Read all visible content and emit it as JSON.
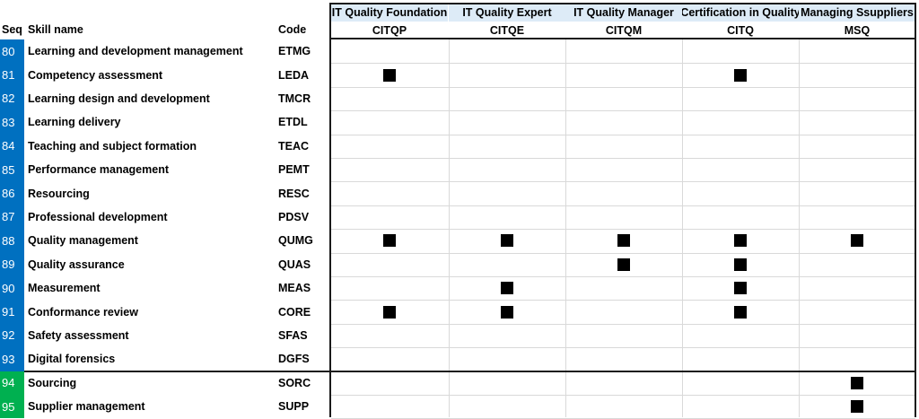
{
  "headers": {
    "seq": "Seq",
    "skill_name": "Skill name",
    "code": "Code"
  },
  "certifications": [
    {
      "name": "IT Quality Foundation",
      "code": "CITQP"
    },
    {
      "name": "IT Quality Expert",
      "code": "CITQE"
    },
    {
      "name": "IT Quality Manager",
      "code": "CITQM"
    },
    {
      "name": "Certification in Quality",
      "code": "CITQ"
    },
    {
      "name": "Managing Ssuppliers",
      "code": "MSQ"
    }
  ],
  "colors": {
    "seq_blue": "#0070c0",
    "seq_green": "#00b050",
    "header_band": "#ddebf7",
    "mark": "#000000"
  },
  "rows": [
    {
      "seq": "80",
      "name": "Learning and development management",
      "code": "ETMG",
      "group": "blue",
      "marks": [
        0,
        0,
        0,
        0,
        0
      ]
    },
    {
      "seq": "81",
      "name": "Competency assessment",
      "code": "LEDA",
      "group": "blue",
      "marks": [
        1,
        0,
        0,
        1,
        0
      ]
    },
    {
      "seq": "82",
      "name": "Learning design and development",
      "code": "TMCR",
      "group": "blue",
      "marks": [
        0,
        0,
        0,
        0,
        0
      ]
    },
    {
      "seq": "83",
      "name": "Learning delivery",
      "code": "ETDL",
      "group": "blue",
      "marks": [
        0,
        0,
        0,
        0,
        0
      ]
    },
    {
      "seq": "84",
      "name": "Teaching and subject formation",
      "code": "TEAC",
      "group": "blue",
      "marks": [
        0,
        0,
        0,
        0,
        0
      ]
    },
    {
      "seq": "85",
      "name": "Performance management",
      "code": "PEMT",
      "group": "blue",
      "marks": [
        0,
        0,
        0,
        0,
        0
      ]
    },
    {
      "seq": "86",
      "name": "Resourcing",
      "code": "RESC",
      "group": "blue",
      "marks": [
        0,
        0,
        0,
        0,
        0
      ]
    },
    {
      "seq": "87",
      "name": "Professional development",
      "code": "PDSV",
      "group": "blue",
      "marks": [
        0,
        0,
        0,
        0,
        0
      ]
    },
    {
      "seq": "88",
      "name": "Quality management",
      "code": "QUMG",
      "group": "blue",
      "marks": [
        1,
        1,
        1,
        1,
        1
      ]
    },
    {
      "seq": "89",
      "name": "Quality assurance",
      "code": "QUAS",
      "group": "blue",
      "marks": [
        0,
        0,
        1,
        1,
        0
      ]
    },
    {
      "seq": "90",
      "name": "Measurement",
      "code": "MEAS",
      "group": "blue",
      "marks": [
        0,
        1,
        0,
        1,
        0
      ]
    },
    {
      "seq": "91",
      "name": "Conformance review",
      "code": "CORE",
      "group": "blue",
      "marks": [
        1,
        1,
        0,
        1,
        0
      ]
    },
    {
      "seq": "92",
      "name": "Safety assessment",
      "code": "SFAS",
      "group": "blue",
      "marks": [
        0,
        0,
        0,
        0,
        0
      ]
    },
    {
      "seq": "93",
      "name": "Digital forensics",
      "code": "DGFS",
      "group": "blue",
      "marks": [
        0,
        0,
        0,
        0,
        0
      ]
    },
    {
      "seq": "94",
      "name": "Sourcing",
      "code": "SORC",
      "group": "green",
      "marks": [
        0,
        0,
        0,
        0,
        1
      ]
    },
    {
      "seq": "95",
      "name": "Supplier management",
      "code": "SUPP",
      "group": "green",
      "marks": [
        0,
        0,
        0,
        0,
        1
      ]
    }
  ]
}
